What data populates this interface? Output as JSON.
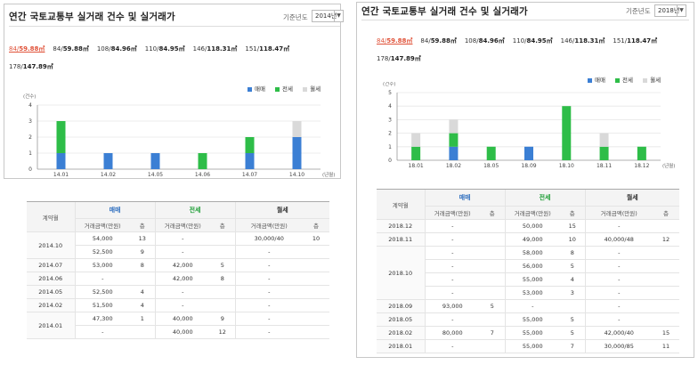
{
  "left": {
    "title": "연간 국토교통부 실거래 건수 및 실거래가",
    "year_label": "기준년도",
    "year_value": "2014년",
    "sizes_row1": [
      {
        "a": "84/",
        "b": "59.88㎡",
        "active": true
      },
      {
        "a": "84/",
        "b": "59.88㎡",
        "active": false
      },
      {
        "a": "108/",
        "b": "84.96㎡",
        "active": false
      },
      {
        "a": "110/",
        "b": "84.95㎡",
        "active": false
      },
      {
        "a": "146/",
        "b": "118.31㎡",
        "active": false
      },
      {
        "a": "151/",
        "b": "118.47㎡",
        "active": false
      }
    ],
    "sizes_row2": [
      {
        "a": "178/",
        "b": "147.89㎡",
        "active": false
      }
    ],
    "legend": [
      {
        "label": "매매",
        "color": "#3b7fd4"
      },
      {
        "label": "전세",
        "color": "#2ebd48"
      },
      {
        "label": "월세",
        "color": "#d9d9d9"
      }
    ],
    "chart_data": {
      "type": "bar",
      "stacked": true,
      "ylabel": "(건수)",
      "xlabel": "(년월)",
      "ylim": [
        0,
        4
      ],
      "yticks": [
        0,
        1,
        2,
        3,
        4
      ],
      "grid": true,
      "legend_position": "top-right",
      "categories": [
        "14.01",
        "14.02",
        "14.05",
        "14.06",
        "14.07",
        "14.10"
      ],
      "series": [
        {
          "name": "매매",
          "color": "#3b7fd4",
          "values": [
            1,
            1,
            1,
            0,
            1,
            2
          ]
        },
        {
          "name": "전세",
          "color": "#2ebd48",
          "values": [
            2,
            0,
            0,
            1,
            1,
            0
          ]
        },
        {
          "name": "월세",
          "color": "#d9d9d9",
          "values": [
            0,
            0,
            0,
            0,
            0,
            1
          ]
        }
      ]
    },
    "table": {
      "month_header": "계약월",
      "groups": [
        "매매",
        "전세",
        "월세"
      ],
      "sub_price": "거래금액(만원)",
      "sub_floor": "층",
      "rows": [
        {
          "month": "2014.10",
          "span": 2,
          "cells": [
            "54,000",
            "13",
            "-",
            "",
            "30,000/40",
            "10"
          ]
        },
        {
          "cells": [
            "52,500",
            "9",
            "-",
            "",
            "-",
            ""
          ]
        },
        {
          "month": "2014.07",
          "span": 1,
          "cells": [
            "53,000",
            "8",
            "42,000",
            "5",
            "-",
            ""
          ]
        },
        {
          "month": "2014.06",
          "span": 1,
          "cells": [
            "-",
            "",
            "42,000",
            "8",
            "-",
            ""
          ]
        },
        {
          "month": "2014.05",
          "span": 1,
          "cells": [
            "52,500",
            "4",
            "-",
            "",
            "-",
            ""
          ]
        },
        {
          "month": "2014.02",
          "span": 1,
          "cells": [
            "51,500",
            "4",
            "-",
            "",
            "-",
            ""
          ]
        },
        {
          "month": "2014.01",
          "span": 2,
          "cells": [
            "47,300",
            "1",
            "40,000",
            "9",
            "-",
            ""
          ]
        },
        {
          "cells": [
            "-",
            "",
            "40,000",
            "12",
            "-",
            ""
          ]
        }
      ]
    }
  },
  "right": {
    "title": "연간 국토교통부 실거래 건수 및 실거래가",
    "year_label": "기준년도",
    "year_value": "2018년",
    "sizes_row1": [
      {
        "a": "84/",
        "b": "59.88㎡",
        "active": true
      },
      {
        "a": "84/",
        "b": "59.88㎡",
        "active": false
      },
      {
        "a": "108/",
        "b": "84.96㎡",
        "active": false
      },
      {
        "a": "110/",
        "b": "84.95㎡",
        "active": false
      },
      {
        "a": "146/",
        "b": "118.31㎡",
        "active": false
      },
      {
        "a": "151/",
        "b": "118.47㎡",
        "active": false
      }
    ],
    "sizes_row2": [
      {
        "a": "178/",
        "b": "147.89㎡",
        "active": false
      }
    ],
    "legend": [
      {
        "label": "매매",
        "color": "#3b7fd4"
      },
      {
        "label": "전세",
        "color": "#2ebd48"
      },
      {
        "label": "월세",
        "color": "#d9d9d9"
      }
    ],
    "chart_data": {
      "type": "bar",
      "stacked": true,
      "ylabel": "(건수)",
      "xlabel": "(년월)",
      "ylim": [
        0,
        5
      ],
      "yticks": [
        0,
        1,
        2,
        3,
        4,
        5
      ],
      "grid": true,
      "legend_position": "top-right",
      "categories": [
        "18.01",
        "18.02",
        "18.05",
        "18.09",
        "18.10",
        "18.11",
        "18.12"
      ],
      "series": [
        {
          "name": "매매",
          "color": "#3b7fd4",
          "values": [
            0,
            1,
            0,
            1,
            0,
            0,
            0
          ]
        },
        {
          "name": "전세",
          "color": "#2ebd48",
          "values": [
            1,
            1,
            1,
            0,
            4,
            1,
            1
          ]
        },
        {
          "name": "월세",
          "color": "#d9d9d9",
          "values": [
            1,
            1,
            0,
            0,
            0,
            1,
            0
          ]
        }
      ]
    },
    "table": {
      "month_header": "계약월",
      "groups": [
        "매매",
        "전세",
        "월세"
      ],
      "sub_price": "거래금액(만원)",
      "sub_floor": "층",
      "rows": [
        {
          "month": "2018.12",
          "span": 1,
          "cells": [
            "-",
            "",
            "50,000",
            "15",
            "-",
            ""
          ]
        },
        {
          "month": "2018.11",
          "span": 1,
          "cells": [
            "-",
            "",
            "49,000",
            "10",
            "40,000/48",
            "12"
          ]
        },
        {
          "month": "2018.10",
          "span": 4,
          "cells": [
            "-",
            "",
            "58,000",
            "8",
            "-",
            ""
          ]
        },
        {
          "cells": [
            "-",
            "",
            "56,000",
            "5",
            "-",
            ""
          ]
        },
        {
          "cells": [
            "-",
            "",
            "55,000",
            "4",
            "-",
            ""
          ]
        },
        {
          "cells": [
            "-",
            "",
            "53,000",
            "3",
            "-",
            ""
          ]
        },
        {
          "month": "2018.09",
          "span": 1,
          "cells": [
            "93,000",
            "5",
            "-",
            "",
            "-",
            ""
          ]
        },
        {
          "month": "2018.05",
          "span": 1,
          "cells": [
            "-",
            "",
            "55,000",
            "5",
            "-",
            ""
          ]
        },
        {
          "month": "2018.02",
          "span": 1,
          "cells": [
            "80,000",
            "7",
            "55,000",
            "5",
            "42,000/40",
            "15"
          ]
        },
        {
          "month": "2018.01",
          "span": 1,
          "cells": [
            "-",
            "",
            "55,000",
            "7",
            "30,000/85",
            "11"
          ]
        }
      ]
    }
  }
}
